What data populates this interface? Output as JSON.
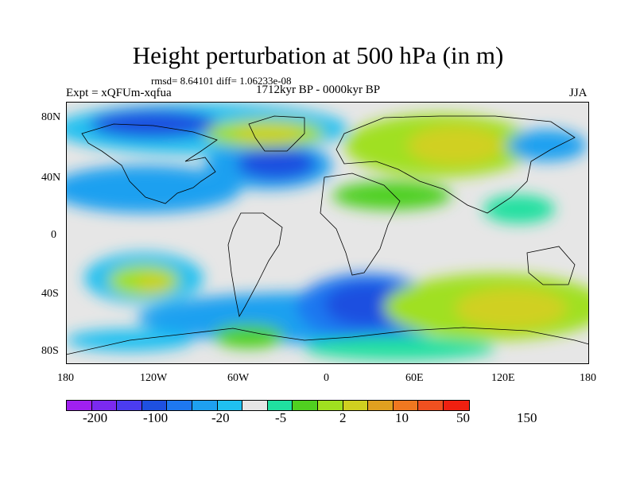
{
  "figure": {
    "title": "Height perturbation at 500 hPa (in m)",
    "stats": "rmsd= 8.64101 diff= 1.06233e-08",
    "experiment": "Expt = xQFUm-xqfua",
    "period": "1712kyr BP - 0000kyr BP",
    "season": "JJA"
  },
  "axes": {
    "y_labels": [
      "80N",
      "40N",
      "0",
      "40S",
      "80S"
    ],
    "x_labels": [
      "180",
      "120W",
      "60W",
      "0",
      "60E",
      "120E",
      "180"
    ]
  },
  "colorbar": {
    "colors": [
      "#a020f0",
      "#7b2af0",
      "#4b3cf0",
      "#1e50e0",
      "#1e78f0",
      "#1ea0f0",
      "#20c0f0",
      "#e6e6e6",
      "#20e0a0",
      "#50d020",
      "#a0e020",
      "#d0d020",
      "#e0a020",
      "#f07820",
      "#f05020",
      "#f02010"
    ],
    "labels": [
      "-200",
      "-100",
      "-20",
      "-5",
      "2",
      "10",
      "50",
      "150"
    ]
  },
  "layer_colors": {
    "continent_outline": "#000000",
    "background": "#e6e6e6"
  }
}
